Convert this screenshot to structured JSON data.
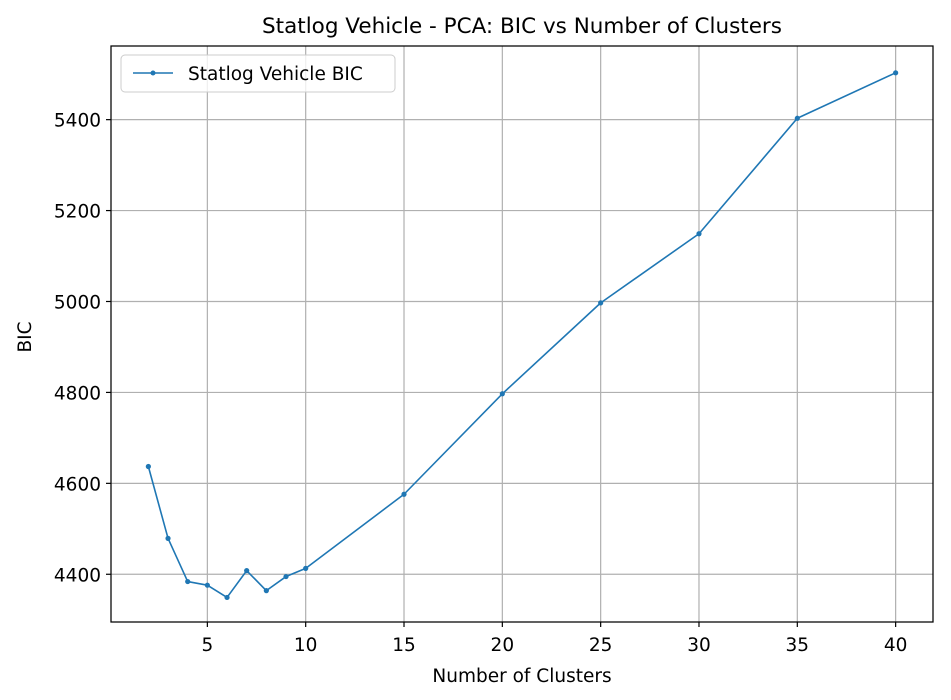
{
  "chart_data": {
    "type": "line",
    "title": "Statlog Vehicle - PCA: BIC vs Number of Clusters",
    "xlabel": "Number of Clusters",
    "ylabel": "BIC",
    "xlim": [
      0.1,
      41.9
    ],
    "ylim": [
      4295,
      5562
    ],
    "xticks": [
      5,
      10,
      15,
      20,
      25,
      30,
      35,
      40
    ],
    "yticks": [
      4400,
      4600,
      4800,
      5000,
      5200,
      5400
    ],
    "grid": true,
    "legend_position": "upper left",
    "series": [
      {
        "name": "Statlog Vehicle BIC",
        "color": "#1f77b4",
        "marker": "circle",
        "x": [
          2,
          3,
          4,
          5,
          6,
          7,
          8,
          9,
          10,
          15,
          20,
          25,
          30,
          35,
          40
        ],
        "y": [
          4637,
          4479,
          4384,
          4376,
          4349,
          4408,
          4364,
          4395,
          4413,
          4576,
          4797,
          4997,
          5149,
          5403,
          5503
        ]
      }
    ]
  }
}
